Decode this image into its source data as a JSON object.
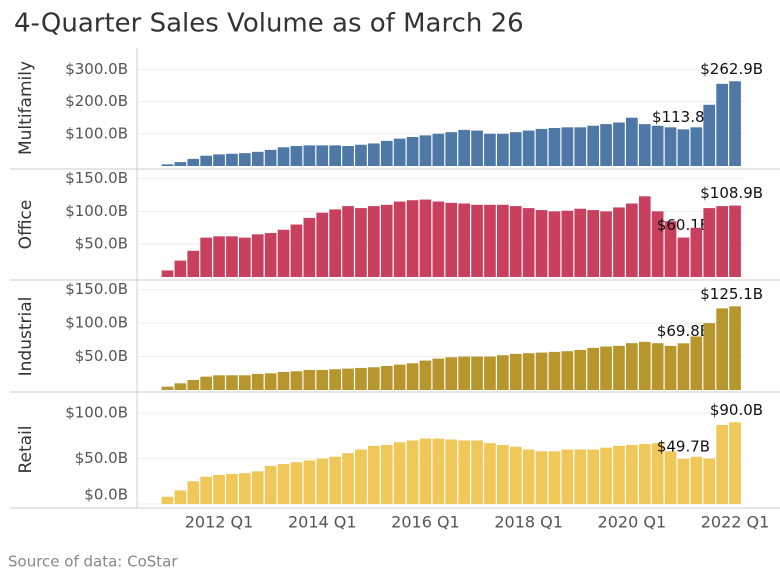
{
  "chart_data": {
    "type": "bar",
    "title": "4-Quarter Sales Volume as of March 26",
    "source": "Source of data: CoStar",
    "grid": true,
    "categories": [
      null,
      null,
      null,
      null,
      "2012 Q1",
      null,
      null,
      null,
      null,
      null,
      null,
      null,
      "2014 Q1",
      null,
      null,
      null,
      null,
      null,
      null,
      null,
      "2016 Q1",
      null,
      null,
      null,
      null,
      null,
      null,
      null,
      "2018 Q1",
      null,
      null,
      null,
      null,
      null,
      null,
      null,
      "2020 Q1",
      null,
      null,
      null,
      null,
      null,
      null,
      null,
      "2022 Q1"
    ],
    "series": [
      {
        "name": "Multifamily",
        "color": "#4e79a7",
        "ylim": [
          0,
          360
        ],
        "yticks": [
          {
            "value": 100,
            "label": "$100.0B"
          },
          {
            "value": 200,
            "label": "$200.0B"
          },
          {
            "value": 300,
            "label": "$300.0B"
          }
        ],
        "values": [
          5,
          12,
          22,
          32,
          36,
          38,
          40,
          44,
          50,
          58,
          62,
          64,
          64,
          64,
          62,
          66,
          70,
          78,
          85,
          90,
          95,
          100,
          105,
          112,
          110,
          100,
          100,
          105,
          110,
          115,
          118,
          120,
          120,
          125,
          130,
          135,
          150,
          130,
          125,
          120,
          113.8,
          120,
          190,
          255,
          262.9
        ],
        "value_labels": [
          null,
          null,
          null,
          null,
          null,
          null,
          null,
          null,
          null,
          null,
          null,
          null,
          null,
          null,
          null,
          null,
          null,
          null,
          null,
          null,
          null,
          null,
          null,
          null,
          null,
          null,
          null,
          null,
          null,
          null,
          null,
          null,
          null,
          null,
          null,
          null,
          null,
          null,
          null,
          null,
          "$113.8B",
          null,
          null,
          null,
          "$262.9B"
        ]
      },
      {
        "name": "Office",
        "color": "#c9405f",
        "ylim": [
          0,
          160
        ],
        "yticks": [
          {
            "value": 50,
            "label": "$50.0B"
          },
          {
            "value": 100,
            "label": "$100.0B"
          },
          {
            "value": 150,
            "label": "$150.0B"
          }
        ],
        "values": [
          10,
          25,
          40,
          60,
          62,
          62,
          60,
          65,
          67,
          72,
          80,
          90,
          98,
          103,
          108,
          105,
          108,
          110,
          115,
          117,
          118,
          115,
          113,
          112,
          110,
          110,
          110,
          108,
          105,
          102,
          100,
          101,
          104,
          102,
          100,
          106,
          112,
          123,
          100,
          85,
          60.1,
          75,
          105,
          108,
          108.9
        ],
        "value_labels": [
          null,
          null,
          null,
          null,
          null,
          null,
          null,
          null,
          null,
          null,
          null,
          null,
          null,
          null,
          null,
          null,
          null,
          null,
          null,
          null,
          null,
          null,
          null,
          null,
          null,
          null,
          null,
          null,
          null,
          null,
          null,
          null,
          null,
          null,
          null,
          null,
          null,
          null,
          null,
          null,
          "$60.1B",
          null,
          null,
          null,
          "$108.9B"
        ]
      },
      {
        "name": "Industrial",
        "color": "#b8962e",
        "ylim": [
          0,
          160
        ],
        "yticks": [
          {
            "value": 50,
            "label": "$50.0B"
          },
          {
            "value": 100,
            "label": "$100.0B"
          },
          {
            "value": 150,
            "label": "$150.0B"
          }
        ],
        "values": [
          5,
          10,
          15,
          20,
          22,
          22,
          22,
          24,
          25,
          27,
          28,
          30,
          30,
          31,
          32,
          33,
          34,
          36,
          38,
          40,
          44,
          47,
          49,
          50,
          50,
          50,
          52,
          54,
          55,
          56,
          57,
          58,
          60,
          63,
          65,
          66,
          70,
          72,
          70,
          66,
          69.8,
          80,
          100,
          122,
          125.1
        ],
        "value_labels": [
          null,
          null,
          null,
          null,
          null,
          null,
          null,
          null,
          null,
          null,
          null,
          null,
          null,
          null,
          null,
          null,
          null,
          null,
          null,
          null,
          null,
          null,
          null,
          null,
          null,
          null,
          null,
          null,
          null,
          null,
          null,
          null,
          null,
          null,
          null,
          null,
          null,
          null,
          null,
          null,
          "$69.8B",
          null,
          null,
          null,
          "$125.1B"
        ]
      },
      {
        "name": "Retail",
        "color": "#f0c85a",
        "ylim": [
          0,
          120
        ],
        "yticks": [
          {
            "value": 0,
            "label": "$0.0B"
          },
          {
            "value": 50,
            "label": "$50.0B"
          },
          {
            "value": 100,
            "label": "$100.0B"
          }
        ],
        "values": [
          8,
          15,
          25,
          30,
          32,
          33,
          34,
          36,
          42,
          44,
          46,
          48,
          50,
          52,
          56,
          60,
          64,
          65,
          68,
          70,
          72,
          72,
          71,
          70,
          70,
          67,
          65,
          63,
          60,
          58,
          58,
          60,
          60,
          60,
          62,
          64,
          65,
          66,
          67,
          58,
          49.7,
          52,
          50,
          87,
          90.0
        ],
        "value_labels": [
          null,
          null,
          null,
          null,
          null,
          null,
          null,
          null,
          null,
          null,
          null,
          null,
          null,
          null,
          null,
          null,
          null,
          null,
          null,
          null,
          null,
          null,
          null,
          null,
          null,
          null,
          null,
          null,
          null,
          null,
          null,
          null,
          null,
          null,
          null,
          null,
          null,
          null,
          null,
          null,
          "$49.7B",
          null,
          null,
          null,
          "$90.0B"
        ]
      }
    ]
  }
}
